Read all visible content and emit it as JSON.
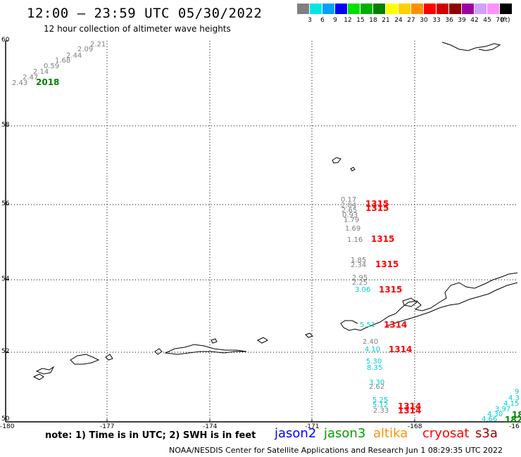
{
  "header": {
    "title": "12:00 – 23:59 UTC 05/30/2022",
    "subtitle": "12 hour collection of altimeter wave heights"
  },
  "legend": {
    "unit": "(ft)",
    "items": [
      {
        "label": "3",
        "color": "#808080"
      },
      {
        "label": "6",
        "color": "#00e5e5"
      },
      {
        "label": "9",
        "color": "#00a0ff"
      },
      {
        "label": "12",
        "color": "#0000ff"
      },
      {
        "label": "15",
        "color": "#00e000"
      },
      {
        "label": "18",
        "color": "#00b000"
      },
      {
        "label": "21",
        "color": "#008000"
      },
      {
        "label": "24",
        "color": "#ffff00"
      },
      {
        "label": "27",
        "color": "#ffd000"
      },
      {
        "label": "30",
        "color": "#ff9000"
      },
      {
        "label": "33",
        "color": "#ff0000"
      },
      {
        "label": "36",
        "color": "#d00000"
      },
      {
        "label": "39",
        "color": "#900000"
      },
      {
        "label": "42",
        "color": "#a000a0"
      },
      {
        "label": "45",
        "color": "#d0a0ff"
      },
      {
        "label": "70",
        "color": "#ff90ff"
      },
      {
        "label": "",
        "color": "#000000"
      }
    ]
  },
  "axes": {
    "y_ticks": [
      "60",
      "58",
      "56",
      "54",
      "52",
      "50"
    ],
    "x_ticks": [
      "-180",
      "-177",
      "-174",
      "-171",
      "-168",
      "-16"
    ]
  },
  "labels": {
    "track_nw": {
      "values": [
        "2.21",
        "2.09",
        "2.44",
        "1.68",
        "0.59",
        "2.14",
        "2.47",
        "2.43"
      ],
      "time": "2018"
    },
    "track_main": {
      "gray_values": [
        "0.17",
        "2.04",
        "2.65",
        "0.93",
        "1.79",
        "1.69",
        "1.16",
        "1.85",
        "2.34",
        "2.95",
        "2.25",
        "2.40",
        "2.62",
        "2.33"
      ],
      "cyan_values": [
        "3.06",
        "5.51",
        "4.10",
        "5.30",
        "8.35",
        "3.30",
        "5.25",
        "5.12"
      ],
      "times": [
        "1315",
        "1315",
        "1315",
        "1315",
        "1315",
        "1314",
        "1314",
        "1314",
        "1314"
      ]
    },
    "track_se": {
      "cyan_values": [
        "9",
        "4.3",
        "4.15",
        "3.97",
        "4.30",
        "4.66"
      ],
      "times": [
        "18",
        "182"
      ]
    }
  },
  "footer": {
    "note": "note: 1) Time is in UTC; 2) SWH is in feet",
    "satellites": [
      {
        "name": "jason2",
        "color": "#0000ff"
      },
      {
        "name": "jason3",
        "color": "#00a000"
      },
      {
        "name": "altika",
        "color": "#ff9000"
      },
      {
        "name": "cryosat",
        "color": "#ff0000"
      },
      {
        "name": "s3a",
        "color": "#a00000"
      }
    ],
    "credit": "NOAA/NESDIS Center for Satellite Applications and Research   Jun  1 08:29:35 UTC 2022"
  }
}
